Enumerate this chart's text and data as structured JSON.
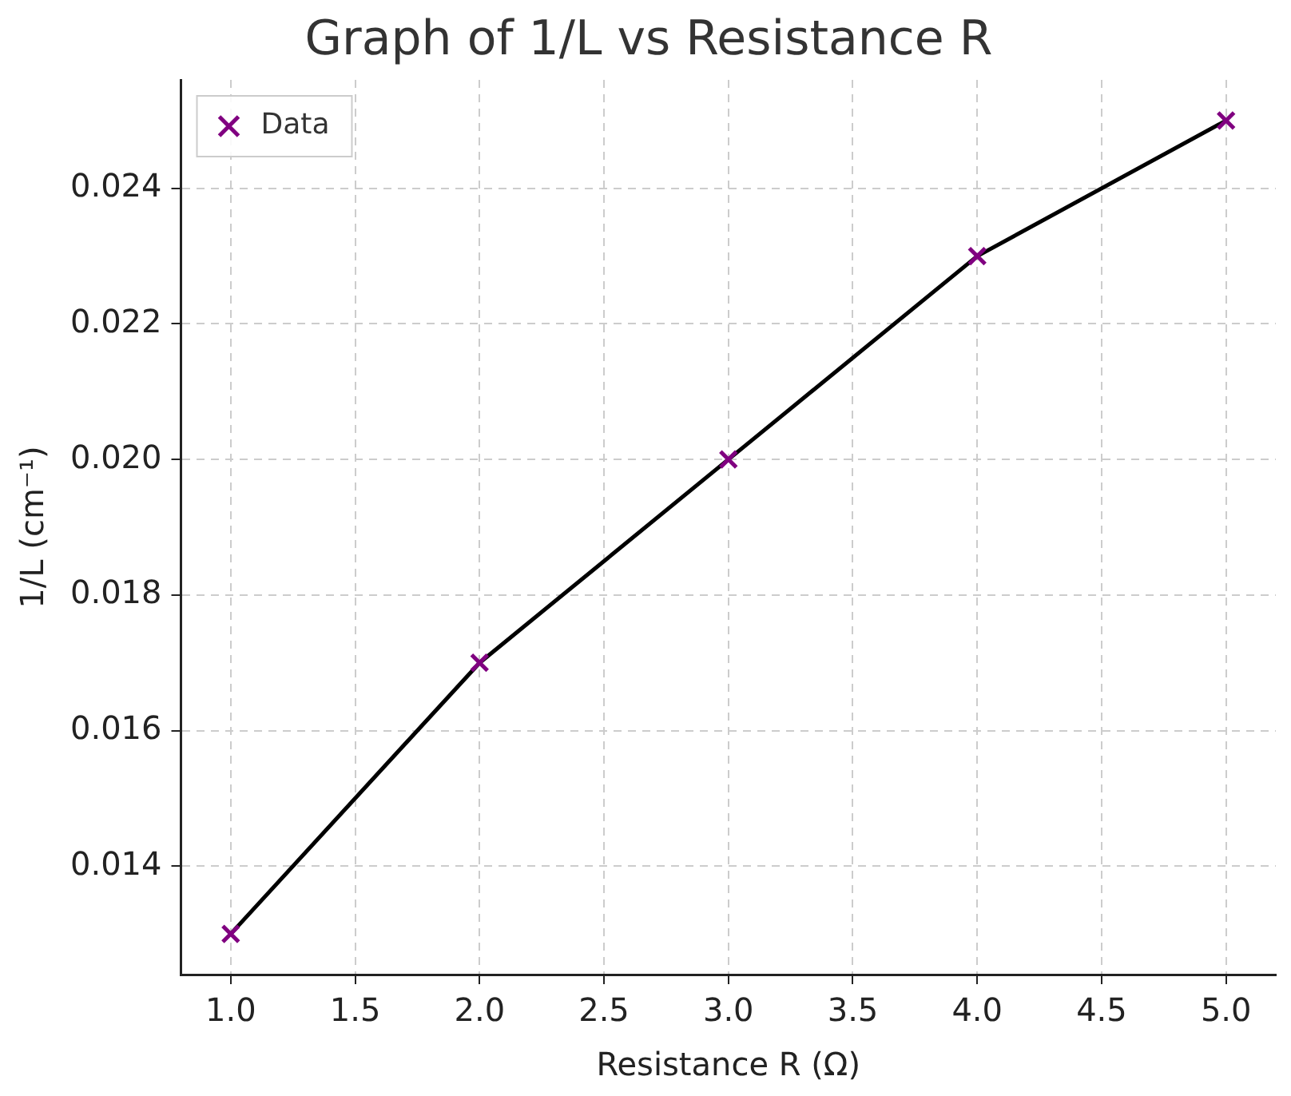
{
  "chart_data": {
    "type": "scatter",
    "title": "Graph of 1/L vs Resistance R",
    "xlabel": "Resistance R (Ω)",
    "ylabel": "1/L (cm⁻¹)",
    "x": [
      1,
      2,
      3,
      4,
      5
    ],
    "series": [
      {
        "type": "line",
        "color": "#000000",
        "marker": "none",
        "values": [
          0.013,
          0.017,
          0.02,
          0.023,
          0.025
        ]
      },
      {
        "name": "Data",
        "color": "#800080",
        "marker": "cross",
        "values": [
          0.013,
          0.017,
          0.02,
          0.023,
          0.025
        ]
      }
    ],
    "xlim": [
      0.8,
      5.2
    ],
    "xticks": [
      {
        "value": 1,
        "label": "1.0"
      },
      {
        "value": 1.5,
        "label": "1.5"
      },
      {
        "value": 2,
        "label": "2.0"
      },
      {
        "value": 2.5,
        "label": "2.5"
      },
      {
        "value": 3,
        "label": "3.0"
      },
      {
        "value": 3.5,
        "label": "3.5"
      },
      {
        "value": 4,
        "label": "4.0"
      },
      {
        "value": 4.5,
        "label": "4.5"
      },
      {
        "value": 5,
        "label": "5.0"
      }
    ],
    "ylim": [
      0.0124,
      0.0256
    ],
    "yticks": [
      {
        "value": 0.014,
        "label": "0.014"
      },
      {
        "value": 0.016,
        "label": "0.016"
      },
      {
        "value": 0.018,
        "label": "0.018"
      },
      {
        "value": 0.02,
        "label": "0.020"
      },
      {
        "value": 0.022,
        "label": "0.022"
      },
      {
        "value": 0.024,
        "label": "0.024"
      }
    ],
    "grid": true,
    "legend": "top left",
    "line_style": "solid"
  }
}
